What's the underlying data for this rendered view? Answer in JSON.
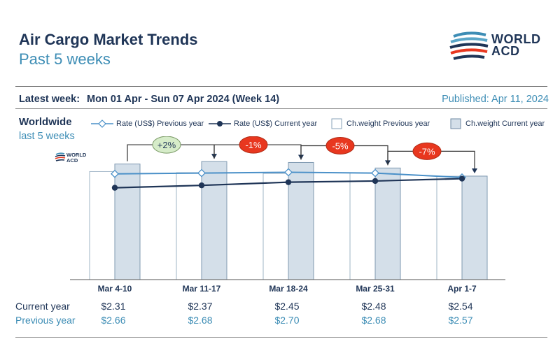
{
  "header": {
    "title": "Air Cargo Market Trends",
    "subtitle": "Past 5 weeks"
  },
  "logo": {
    "line1": "WORLD",
    "line2": "ACD"
  },
  "latest_week": {
    "label": "Latest week:",
    "value": "Mon 01 Apr - Sun 07 Apr 2024 (Week 14)"
  },
  "published": "Published: Apr 11, 2024",
  "region": "Worldwide",
  "period": "last 5 weeks",
  "legend": {
    "rate_prev": "Rate (US$) Previous year",
    "rate_cur": "Rate (US$) Current year",
    "weight_prev": "Ch.weight Previous year",
    "weight_cur": "Ch.weight Current year"
  },
  "colors": {
    "navy": "#1f3557",
    "light_blue": "#4a90c8",
    "accent_text": "#3d8db5",
    "bar_current": "#d4dfe9",
    "bar_prev": "#ffffff",
    "change_up": "#d6ecc9",
    "change_down": "#e8371f"
  },
  "chart_data": {
    "type": "bar",
    "categories": [
      "Mar 4-10",
      "Mar 11-17",
      "Mar 18-24",
      "Mar 25-31",
      "Apr 1-7"
    ],
    "series": [
      {
        "name": "Ch.weight Previous year",
        "values": [
          100.0,
          99.0,
          98.3,
          98.7,
          95.7
        ]
      },
      {
        "name": "Ch.weight Current year",
        "values": [
          107.0,
          109.3,
          108.4,
          103.3,
          95.8
        ]
      },
      {
        "name": "Rate (US$) Previous year",
        "values": [
          2.66,
          2.68,
          2.7,
          2.68,
          2.57
        ]
      },
      {
        "name": "Rate (US$) Current year",
        "values": [
          2.31,
          2.37,
          2.45,
          2.48,
          2.54
        ]
      }
    ],
    "weight_axis": {
      "ylim": [
        0,
        110
      ]
    },
    "rate_axis": {
      "ylim": [
        0,
        3.2
      ]
    },
    "changes": [
      "+2%",
      "-1%",
      "-5%",
      "-7%"
    ],
    "grid": false,
    "legend_position": "top"
  },
  "table": {
    "current_label": "Current year",
    "previous_label": "Previous year",
    "current": [
      "$2.31",
      "$2.37",
      "$2.45",
      "$2.48",
      "$2.54"
    ],
    "previous": [
      "$2.66",
      "$2.68",
      "$2.70",
      "$2.68",
      "$2.57"
    ]
  }
}
